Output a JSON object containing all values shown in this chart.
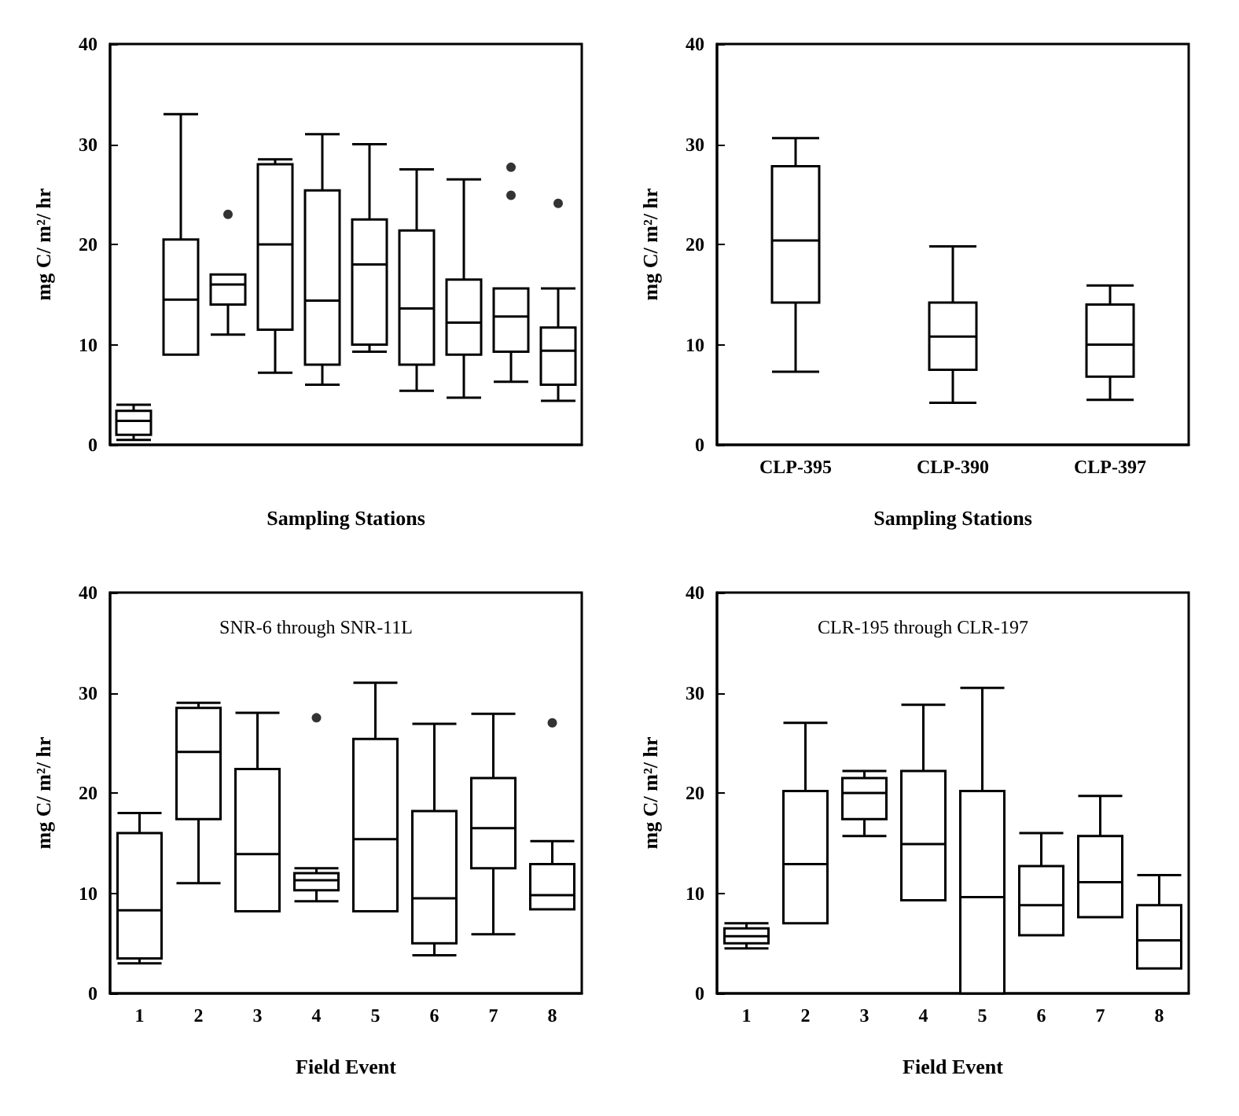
{
  "chart_data": [
    {
      "type": "box",
      "xlabel": "Sampling Stations",
      "ylabel": "mg C/ m²/ hr",
      "color": "#000000",
      "categories": [
        null,
        null,
        null,
        null,
        null,
        null,
        null,
        null,
        null,
        null
      ],
      "ylim": [
        0,
        40
      ],
      "yticks": [
        0,
        10,
        20,
        30,
        40
      ],
      "boxes": [
        {
          "low": 0.5,
          "q1": 1,
          "median": 2.4,
          "q3": 3.4,
          "high": 4
        },
        {
          "low": 9,
          "q1": 9,
          "median": 14.5,
          "q3": 20.5,
          "high": 33
        },
        {
          "low": 11,
          "q1": 14,
          "median": 16,
          "q3": 17,
          "high": 17,
          "outliers": [
            23
          ]
        },
        {
          "low": 7.2,
          "q1": 11.5,
          "median": 20,
          "q3": 28,
          "high": 28.5
        },
        {
          "low": 6,
          "q1": 8,
          "median": 14.4,
          "q3": 25.4,
          "high": 31
        },
        {
          "low": 9.3,
          "q1": 10,
          "median": 18,
          "q3": 22.5,
          "high": 30
        },
        {
          "low": 5.4,
          "q1": 8,
          "median": 13.6,
          "q3": 21.4,
          "high": 27.5
        },
        {
          "low": 4.7,
          "q1": 9,
          "median": 12.2,
          "q3": 16.5,
          "high": 26.5
        },
        {
          "low": 6.3,
          "q1": 9.3,
          "median": 12.8,
          "q3": 15.6,
          "high": 15.6,
          "outliers": [
            27.7,
            24.9
          ]
        },
        {
          "low": 4.4,
          "q1": 6,
          "median": 9.4,
          "q3": 11.7,
          "high": 15.6,
          "outliers": [
            24.1
          ]
        }
      ]
    },
    {
      "type": "box",
      "xlabel": "Sampling Stations",
      "ylabel": "mg C/ m²/ hr",
      "color": "#000000",
      "categories": [
        "CLP-395",
        "CLP-390",
        "CLP-397"
      ],
      "ylim": [
        0,
        40
      ],
      "yticks": [
        0,
        10,
        20,
        30,
        40
      ],
      "boxes": [
        {
          "low": 7.3,
          "q1": 14.2,
          "median": 20.4,
          "q3": 27.8,
          "high": 30.6
        },
        {
          "low": 4.2,
          "q1": 7.5,
          "median": 10.8,
          "q3": 14.2,
          "high": 19.8
        },
        {
          "low": 4.5,
          "q1": 6.8,
          "median": 10,
          "q3": 14,
          "high": 15.9
        }
      ]
    },
    {
      "type": "box",
      "xlabel": "Field Event",
      "ylabel": "mg C/ m²/ hr",
      "annotations": [
        "SNR-6 through SNR-11L"
      ],
      "color": "#000000",
      "categories": [
        "1",
        "2",
        "3",
        "4",
        "5",
        "6",
        "7",
        "8"
      ],
      "ylim": [
        0,
        40
      ],
      "yticks": [
        0,
        10,
        20,
        30,
        40
      ],
      "boxes": [
        {
          "low": 3,
          "q1": 3.5,
          "median": 8.3,
          "q3": 16,
          "high": 18
        },
        {
          "low": 11,
          "q1": 17.4,
          "median": 24.1,
          "q3": 28.5,
          "high": 29
        },
        {
          "low": 8.2,
          "q1": 8.2,
          "median": 13.9,
          "q3": 22.4,
          "high": 28
        },
        {
          "low": 9.2,
          "q1": 10.3,
          "median": 11.3,
          "q3": 12,
          "high": 12.5,
          "outliers": [
            27.5
          ]
        },
        {
          "low": 8.2,
          "q1": 8.2,
          "median": 15.4,
          "q3": 25.4,
          "high": 31
        },
        {
          "low": 3.8,
          "q1": 5,
          "median": 9.5,
          "q3": 18.2,
          "high": 26.9
        },
        {
          "low": 5.9,
          "q1": 12.5,
          "median": 16.5,
          "q3": 21.5,
          "high": 27.9
        },
        {
          "low": 8.4,
          "q1": 8.4,
          "median": 9.8,
          "q3": 12.9,
          "high": 15.2,
          "outliers": [
            27
          ]
        }
      ]
    },
    {
      "type": "box",
      "xlabel": "Field Event",
      "ylabel": "mg C/ m²/ hr",
      "annotations": [
        "CLR-195 through CLR-197"
      ],
      "color": "#000000",
      "categories": [
        "1",
        "2",
        "3",
        "4",
        "5",
        "6",
        "7",
        "8"
      ],
      "ylim": [
        0,
        40
      ],
      "yticks": [
        0,
        10,
        20,
        30,
        40
      ],
      "boxes": [
        {
          "low": 4.5,
          "q1": 5,
          "median": 5.7,
          "q3": 6.5,
          "high": 7
        },
        {
          "low": 7,
          "q1": 7,
          "median": 12.9,
          "q3": 20.2,
          "high": 27
        },
        {
          "low": 15.7,
          "q1": 17.4,
          "median": 20,
          "q3": 21.5,
          "high": 22.2
        },
        {
          "low": 9.3,
          "q1": 9.3,
          "median": 14.9,
          "q3": 22.2,
          "high": 28.8
        },
        {
          "low": 0,
          "q1": 0,
          "median": 9.6,
          "q3": 20.2,
          "high": 30.5
        },
        {
          "low": 5.8,
          "q1": 5.8,
          "median": 8.8,
          "q3": 12.7,
          "high": 16
        },
        {
          "low": 7.6,
          "q1": 7.6,
          "median": 11.1,
          "q3": 15.7,
          "high": 19.7
        },
        {
          "low": 2.5,
          "q1": 2.5,
          "median": 5.3,
          "q3": 8.8,
          "high": 11.8
        }
      ]
    }
  ]
}
